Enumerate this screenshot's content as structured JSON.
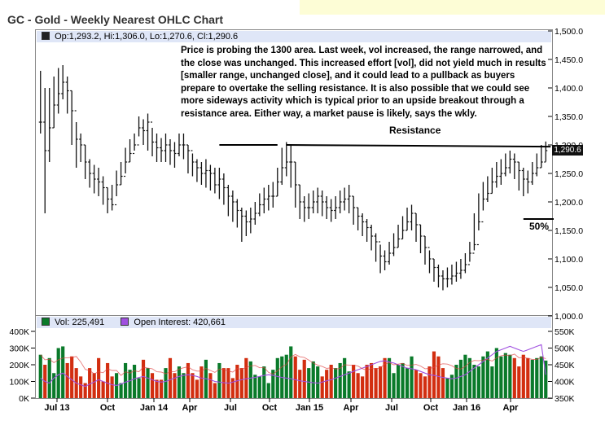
{
  "title": "GC - Gold - Weekly Nearest OHLC Chart",
  "info": {
    "open": "Op:1,293.2",
    "high": "Hi:1,306.0",
    "low": "Lo:1,270.6",
    "close": "Cl:1,290.6"
  },
  "vol_info": {
    "volume": "Vol: 225,491",
    "open_interest": "Open Interest: 420,661"
  },
  "annotation": "Price is probing the 1300 area.  Last week, vol increased, the range narrowed, and the close was unchanged.  This increased effort [vol], did not yield much in results [smaller range, unchanged close], and it could lead to a pullback as buyers prepare to overtake the selling resistance.  It is also possible that we could see more sideways activity which is typical prior to an upside breakout through a resistance area.  Either way, a market pause is likely, says the wkly.",
  "resistance_label": "Resistance",
  "fifty_label": "50%",
  "last_price_tag": "1,290.6",
  "colors": {
    "up": "#0a7a2a",
    "down": "#d22e10",
    "price": "#111111",
    "oi": "#a050e0",
    "oi_ma": "#e04040",
    "info_bg": "#dfe6f7"
  },
  "chart_data": [
    {
      "type": "line",
      "subtype": "ohlc",
      "title": "GC - Gold - Weekly Nearest OHLC Chart",
      "y_ticks": [
        "1,500.0",
        "1,450.0",
        "1,400.0",
        "1,350.0",
        "1,300.0",
        "1,250.0",
        "1,200.0",
        "1,150.0",
        "1,100.0",
        "1,050.0",
        "1,000.0"
      ],
      "ylim": [
        1000,
        1500
      ],
      "x_ticks": [
        "Jul 13",
        "Oct",
        "Jan 14",
        "Apr",
        "Jul",
        "Oct",
        "Jan 15",
        "Apr",
        "Jul",
        "Oct",
        "Jan 16",
        "Apr"
      ],
      "close": [
        1340,
        1290,
        1330,
        1370,
        1390,
        1410,
        1395,
        1360,
        1310,
        1300,
        1270,
        1250,
        1240,
        1235,
        1225,
        1205,
        1195,
        1230,
        1245,
        1270,
        1285,
        1300,
        1330,
        1325,
        1340,
        1305,
        1295,
        1290,
        1300,
        1290,
        1285,
        1300,
        1300,
        1290,
        1270,
        1260,
        1250,
        1255,
        1250,
        1230,
        1240,
        1225,
        1210,
        1200,
        1185,
        1175,
        1165,
        1170,
        1180,
        1195,
        1205,
        1210,
        1210,
        1235,
        1260,
        1270,
        1270,
        1230,
        1200,
        1190,
        1190,
        1200,
        1210,
        1200,
        1190,
        1185,
        1190,
        1200,
        1205,
        1210,
        1190,
        1175,
        1165,
        1155,
        1140,
        1130,
        1105,
        1095,
        1110,
        1120,
        1135,
        1150,
        1165,
        1180,
        1160,
        1140,
        1120,
        1100,
        1085,
        1070,
        1065,
        1065,
        1070,
        1075,
        1080,
        1090,
        1110,
        1125,
        1165,
        1205,
        1215,
        1235,
        1245,
        1250,
        1260,
        1275,
        1270,
        1255,
        1240,
        1235,
        1250,
        1260,
        1270,
        1290
      ],
      "high": [
        1430,
        1400,
        1400,
        1420,
        1435,
        1440,
        1420,
        1395,
        1340,
        1320,
        1300,
        1275,
        1265,
        1260,
        1245,
        1225,
        1230,
        1255,
        1270,
        1295,
        1310,
        1320,
        1350,
        1345,
        1355,
        1330,
        1320,
        1312,
        1320,
        1310,
        1305,
        1320,
        1320,
        1300,
        1285,
        1275,
        1270,
        1275,
        1265,
        1260,
        1260,
        1250,
        1230,
        1220,
        1205,
        1190,
        1185,
        1190,
        1200,
        1215,
        1225,
        1230,
        1235,
        1260,
        1295,
        1305,
        1300,
        1270,
        1230,
        1210,
        1215,
        1220,
        1225,
        1220,
        1210,
        1205,
        1210,
        1220,
        1225,
        1230,
        1210,
        1190,
        1180,
        1170,
        1160,
        1145,
        1125,
        1115,
        1130,
        1145,
        1160,
        1175,
        1190,
        1195,
        1180,
        1160,
        1140,
        1115,
        1100,
        1090,
        1080,
        1085,
        1090,
        1095,
        1100,
        1110,
        1130,
        1180,
        1215,
        1235,
        1245,
        1260,
        1270,
        1275,
        1285,
        1290,
        1285,
        1270,
        1260,
        1255,
        1270,
        1285,
        1300,
        1306
      ],
      "low": [
        1320,
        1180,
        1270,
        1330,
        1355,
        1380,
        1355,
        1300,
        1260,
        1270,
        1240,
        1225,
        1215,
        1210,
        1195,
        1180,
        1185,
        1210,
        1230,
        1250,
        1270,
        1290,
        1315,
        1300,
        1290,
        1280,
        1270,
        1270,
        1270,
        1265,
        1260,
        1280,
        1275,
        1250,
        1245,
        1235,
        1230,
        1225,
        1220,
        1215,
        1205,
        1195,
        1175,
        1165,
        1155,
        1130,
        1140,
        1145,
        1160,
        1175,
        1180,
        1185,
        1190,
        1210,
        1230,
        1245,
        1225,
        1190,
        1170,
        1165,
        1170,
        1180,
        1180,
        1175,
        1170,
        1165,
        1170,
        1180,
        1185,
        1180,
        1160,
        1150,
        1140,
        1130,
        1115,
        1095,
        1075,
        1080,
        1090,
        1105,
        1120,
        1135,
        1150,
        1150,
        1130,
        1110,
        1090,
        1075,
        1060,
        1050,
        1045,
        1050,
        1055,
        1060,
        1065,
        1075,
        1095,
        1115,
        1150,
        1185,
        1200,
        1215,
        1225,
        1230,
        1245,
        1250,
        1240,
        1220,
        1210,
        1215,
        1230,
        1245,
        1260,
        1270.6
      ],
      "resistance_level": 1300,
      "fifty_percent_level": 1170
    },
    {
      "type": "bar",
      "y_ticks_left": [
        "400K",
        "300K",
        "200K",
        "100K",
        "0K"
      ],
      "ylim_left": [
        0,
        400000
      ],
      "y_ticks_right": [
        "550K",
        "500K",
        "450K",
        "400K",
        "350K"
      ],
      "ylim_right": [
        350000,
        550000
      ],
      "series": [
        {
          "name": "Vol",
          "values": [
            260,
            200,
            240,
            150,
            300,
            310,
            210,
            250,
            180,
            130,
            90,
            180,
            150,
            240,
            100,
            210,
            130,
            150,
            90,
            210,
            170,
            200,
            120,
            230,
            180,
            150,
            110,
            110,
            180,
            240,
            150,
            190,
            150,
            210,
            150,
            110,
            190,
            230,
            150,
            90,
            210,
            180,
            180,
            120,
            200,
            180,
            240,
            220,
            140,
            130,
            190,
            90,
            170,
            240,
            250,
            260,
            310,
            250,
            170,
            230,
            180,
            220,
            190,
            130,
            170,
            200,
            180,
            210,
            240,
            160,
            200,
            150,
            130,
            200,
            210,
            180,
            190,
            240,
            240,
            150,
            200,
            210,
            180,
            250,
            170,
            150,
            130,
            190,
            280,
            250,
            180,
            120,
            140,
            200,
            230,
            260,
            240,
            200,
            190,
            250,
            280,
            190,
            300,
            250,
            270,
            260,
            240,
            190,
            260,
            240,
            230,
            240,
            250,
            225
          ]
        },
        {
          "name": "Open Interest",
          "values": [
            410,
            400,
            395,
            410,
            420,
            425,
            415,
            405,
            395,
            390,
            385,
            392,
            398,
            405,
            400,
            395,
            390,
            388,
            392,
            398,
            402,
            408,
            412,
            415,
            410,
            405,
            400,
            398,
            400,
            405,
            410,
            415,
            418,
            420,
            418,
            415,
            410,
            408,
            405,
            400,
            398,
            396,
            395,
            398,
            402,
            405,
            408,
            410,
            412,
            415,
            418,
            420,
            418,
            415,
            412,
            410,
            408,
            405,
            402,
            400,
            398,
            396,
            395,
            398,
            402,
            405,
            410,
            415,
            420,
            425,
            430,
            435,
            440,
            445,
            450,
            455,
            460,
            462,
            458,
            455,
            450,
            445,
            440,
            438,
            435,
            430,
            425,
            420,
            418,
            415,
            412,
            410,
            408,
            410,
            415,
            420,
            430,
            440,
            450,
            460,
            470,
            480,
            490,
            495,
            500,
            505,
            500,
            495,
            490,
            495,
            500,
            505,
            510,
            420
          ]
        }
      ]
    }
  ]
}
